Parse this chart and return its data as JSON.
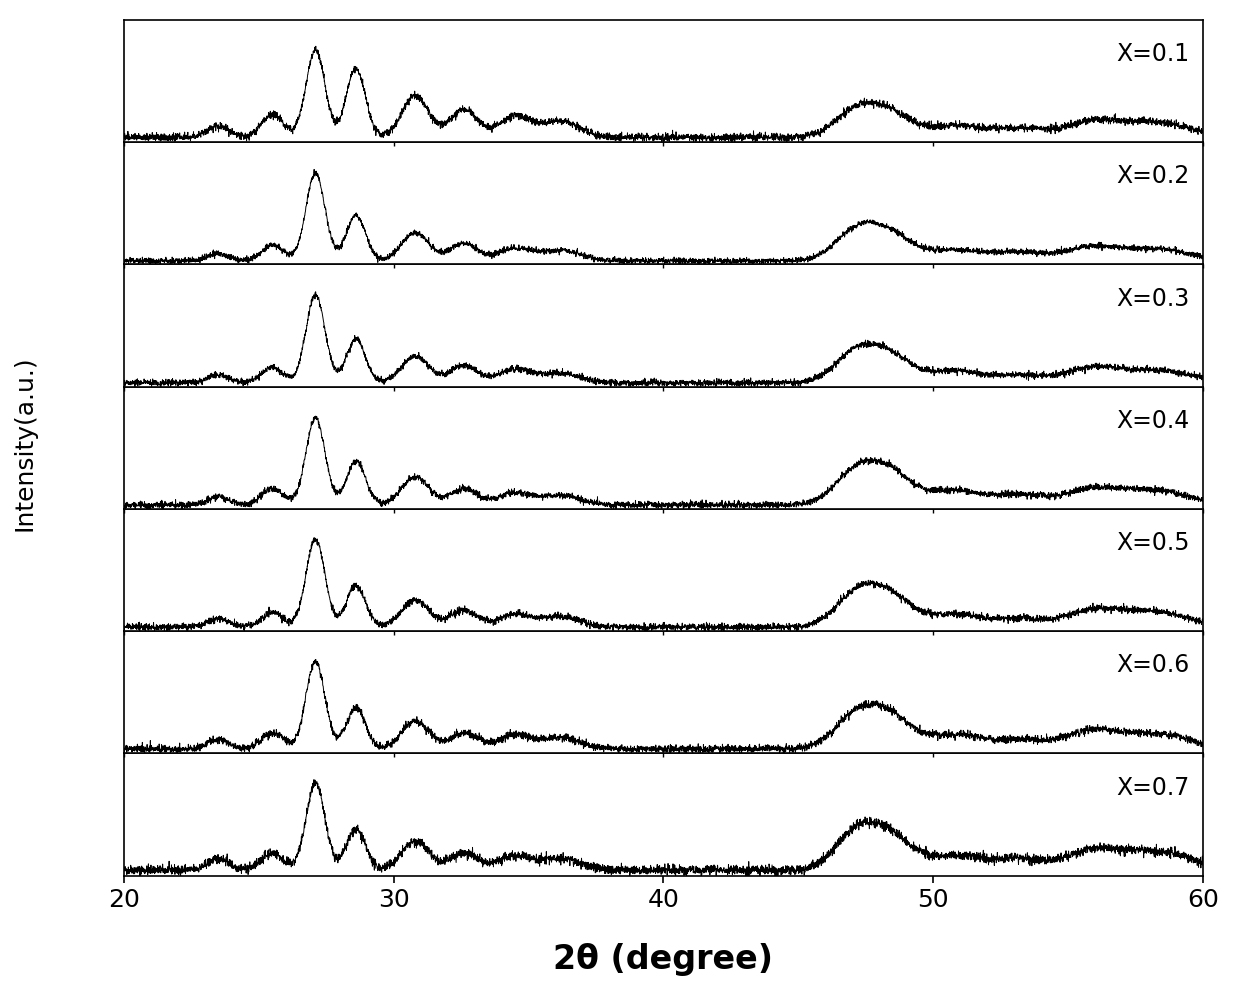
{
  "xlabel": "2θ (degree)",
  "ylabel": "Intensity(a.u.)",
  "xlim": [
    20,
    60
  ],
  "x_ticks": [
    20,
    30,
    40,
    50,
    60
  ],
  "labels": [
    "X=0.1",
    "X=0.2",
    "X=0.3",
    "X=0.4",
    "X=0.5",
    "X=0.6",
    "X=0.7"
  ],
  "line_color": "#000000",
  "background_color": "#ffffff",
  "xlabel_fontsize": 24,
  "ylabel_fontsize": 18,
  "tick_fontsize": 18,
  "label_fontsize": 17,
  "noise_level": 0.008,
  "peak_positions": [
    [
      23.5,
      25.5,
      27.1,
      28.6,
      30.8,
      32.6,
      34.5,
      36.2,
      47.2,
      48.5,
      50.8,
      53.2,
      55.8,
      57.5,
      59.0
    ],
    [
      23.5,
      25.5,
      27.1,
      28.6,
      30.8,
      32.6,
      34.5,
      36.2,
      47.2,
      48.5,
      50.8,
      53.2,
      55.8,
      57.5,
      59.0
    ],
    [
      23.5,
      25.5,
      27.1,
      28.6,
      30.8,
      32.6,
      34.5,
      36.2,
      47.2,
      48.5,
      50.8,
      53.2,
      55.8,
      57.5,
      59.0
    ],
    [
      23.5,
      25.5,
      27.1,
      28.6,
      30.8,
      32.6,
      34.5,
      36.2,
      47.2,
      48.5,
      50.8,
      53.2,
      55.8,
      57.5,
      59.0
    ],
    [
      23.5,
      25.5,
      27.1,
      28.6,
      30.8,
      32.6,
      34.5,
      36.2,
      47.2,
      48.5,
      50.8,
      53.2,
      55.8,
      57.5,
      59.0
    ],
    [
      23.5,
      25.5,
      27.1,
      28.6,
      30.8,
      32.6,
      34.5,
      36.2,
      47.2,
      48.5,
      50.8,
      53.2,
      55.8,
      57.5,
      59.0
    ],
    [
      23.5,
      25.5,
      27.1,
      28.6,
      30.8,
      32.6,
      34.5,
      36.2,
      47.2,
      48.5,
      50.8,
      53.2,
      55.8,
      57.5,
      59.0
    ]
  ],
  "peak_heights_0": [
    0.04,
    0.06,
    0.3,
    0.14,
    0.1,
    0.06,
    0.05,
    0.04,
    0.13,
    0.1,
    0.05,
    0.04,
    0.06,
    0.05,
    0.04
  ],
  "peak_heights_1": [
    0.04,
    0.07,
    0.38,
    0.18,
    0.12,
    0.07,
    0.06,
    0.05,
    0.15,
    0.12,
    0.06,
    0.04,
    0.07,
    0.05,
    0.04
  ],
  "peak_heights_2": [
    0.04,
    0.07,
    0.42,
    0.2,
    0.13,
    0.08,
    0.06,
    0.05,
    0.16,
    0.13,
    0.06,
    0.04,
    0.07,
    0.06,
    0.04
  ],
  "peak_heights_3": [
    0.04,
    0.08,
    0.44,
    0.22,
    0.14,
    0.08,
    0.06,
    0.05,
    0.17,
    0.14,
    0.07,
    0.05,
    0.07,
    0.06,
    0.04
  ],
  "peak_heights_4": [
    0.04,
    0.08,
    0.46,
    0.23,
    0.14,
    0.09,
    0.07,
    0.05,
    0.16,
    0.12,
    0.06,
    0.04,
    0.07,
    0.05,
    0.04
  ],
  "peak_heights_5": [
    0.04,
    0.09,
    0.5,
    0.26,
    0.16,
    0.1,
    0.07,
    0.06,
    0.17,
    0.13,
    0.06,
    0.05,
    0.07,
    0.05,
    0.04
  ],
  "peak_heights_6": [
    0.05,
    0.1,
    0.38,
    0.3,
    0.18,
    0.12,
    0.09,
    0.07,
    0.12,
    0.09,
    0.05,
    0.04,
    0.06,
    0.05,
    0.04
  ],
  "peak_widths": [
    0.4,
    0.4,
    0.35,
    0.35,
    0.5,
    0.5,
    0.6,
    0.7,
    0.8,
    0.8,
    0.9,
    1.0,
    0.9,
    1.0,
    0.9
  ]
}
